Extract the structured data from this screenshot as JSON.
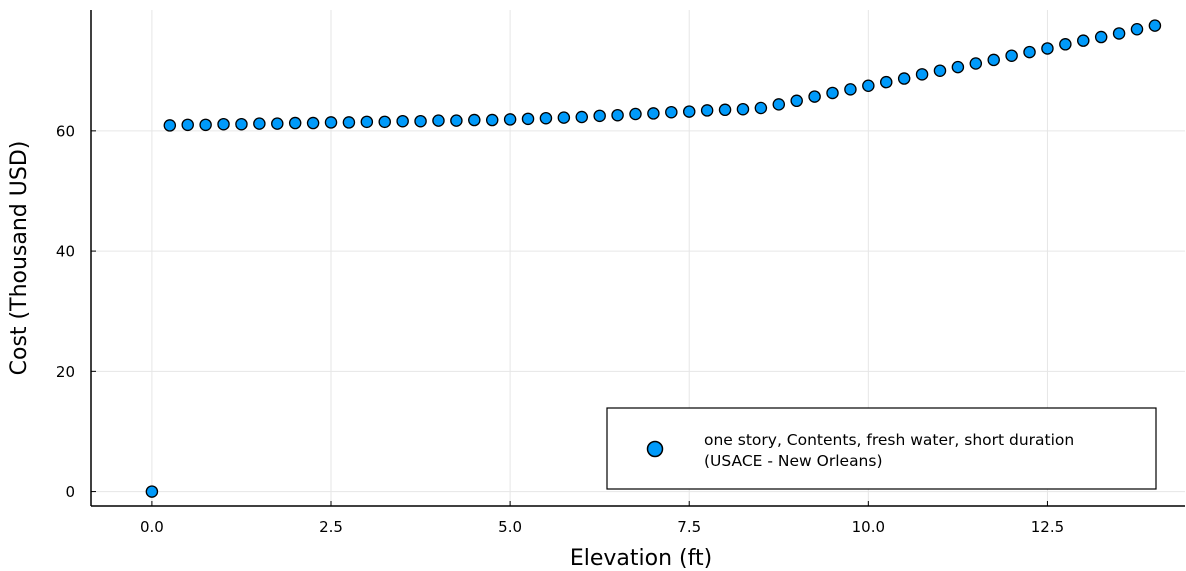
{
  "chart_data": {
    "type": "scatter",
    "title": "",
    "xlabel": "Elevation (ft)",
    "ylabel": "Cost (Thousand USD)",
    "xlim": [
      -0.85,
      14.42
    ],
    "ylim": [
      -2.4,
      80.1
    ],
    "x_ticks": [
      0.0,
      2.5,
      5.0,
      7.5,
      10.0,
      12.5
    ],
    "x_tick_labels": [
      "0.0",
      "2.5",
      "5.0",
      "7.5",
      "10.0",
      "12.5"
    ],
    "y_ticks": [
      0,
      20,
      40,
      60
    ],
    "y_tick_labels": [
      "0",
      "20",
      "40",
      "60"
    ],
    "grid": true,
    "legend_position": "bottom-right",
    "series": [
      {
        "name": "one story, Contents, fresh water, short duration (USACE - New Orleans)",
        "legend_lines": [
          "one story, Contents, fresh water, short duration",
          "(USACE - New Orleans)"
        ],
        "color": "#009AFA",
        "x": [
          0.0,
          0.25,
          0.5,
          0.75,
          1.0,
          1.25,
          1.5,
          1.75,
          2.0,
          2.25,
          2.5,
          2.75,
          3.0,
          3.25,
          3.5,
          3.75,
          4.0,
          4.25,
          4.5,
          4.75,
          5.0,
          5.25,
          5.5,
          5.75,
          6.0,
          6.25,
          6.5,
          6.75,
          7.0,
          7.25,
          7.5,
          7.75,
          8.0,
          8.25,
          8.5,
          8.75,
          9.0,
          9.25,
          9.5,
          9.75,
          10.0,
          10.25,
          10.5,
          10.75,
          11.0,
          11.25,
          11.5,
          11.75,
          12.0,
          12.25,
          12.5,
          12.75,
          13.0,
          13.25,
          13.5,
          13.75,
          14.0
        ],
        "y": [
          0.0,
          60.9,
          61.0,
          61.0,
          61.1,
          61.1,
          61.2,
          61.2,
          61.3,
          61.3,
          61.4,
          61.4,
          61.5,
          61.5,
          61.6,
          61.6,
          61.7,
          61.7,
          61.8,
          61.8,
          61.9,
          62.0,
          62.1,
          62.2,
          62.3,
          62.5,
          62.6,
          62.8,
          62.9,
          63.1,
          63.2,
          63.4,
          63.5,
          63.6,
          63.8,
          64.4,
          65.0,
          65.7,
          66.3,
          66.9,
          67.5,
          68.1,
          68.7,
          69.4,
          70.0,
          70.6,
          71.2,
          71.8,
          72.5,
          73.1,
          73.7,
          74.4,
          75.0,
          75.6,
          76.2,
          76.9,
          77.5
        ]
      }
    ]
  }
}
